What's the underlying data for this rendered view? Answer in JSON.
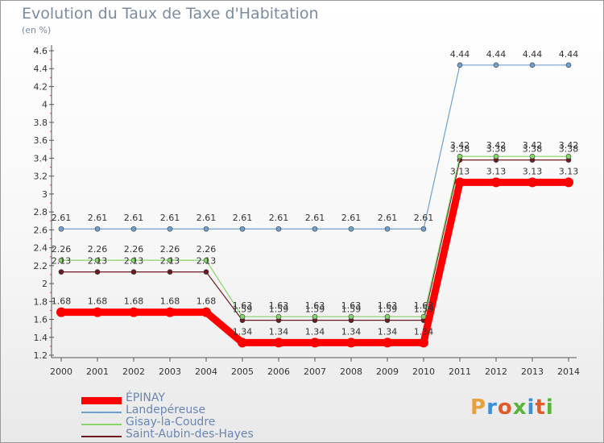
{
  "title": "Evolution du Taux de Taxe d'Habitation",
  "subtitle": "(en %)",
  "logo_text": "Proxiti",
  "logo_colors": [
    "#e8a13a",
    "#3b8fd6",
    "#e25c2b",
    "#58b43c",
    "#3b8fd6",
    "#e25c2b",
    "#58b43c"
  ],
  "chart_data": {
    "type": "line",
    "title": "Evolution du Taux de Taxe d'Habitation",
    "ylabel": "(en %)",
    "xlabel": "",
    "x": [
      "2000",
      "2001",
      "2002",
      "2003",
      "2004",
      "2005",
      "2006",
      "2007",
      "2008",
      "2009",
      "2010",
      "2011",
      "2012",
      "2013",
      "2014"
    ],
    "ylim": [
      1.2,
      4.6
    ],
    "y_ticks": [
      "1.2",
      "1.4",
      "1.6",
      "1.8",
      "2",
      "2.2",
      "2.4",
      "2.6",
      "2.8",
      "3",
      "3.2",
      "3.4",
      "3.6",
      "3.8",
      "4",
      "4.2",
      "4.4",
      "4.6"
    ],
    "grid": false,
    "legend_position": "bottom-left",
    "series": [
      {
        "name": "Saint-Aubin-des-Hayes",
        "color": "#6b1a1f",
        "width": 1.2,
        "marker": 3,
        "values": [
          2.13,
          2.13,
          2.13,
          2.13,
          2.13,
          1.59,
          1.59,
          1.59,
          1.59,
          1.59,
          1.59,
          3.38,
          3.38,
          3.38,
          3.38
        ],
        "labels": [
          "2.13",
          "2.13",
          "2.13",
          "2.13",
          "2.13",
          "1.59",
          "1.59",
          "1.59",
          "1.59",
          "1.59",
          "1.59",
          "3.38",
          "3.38",
          "3.38",
          "3.38"
        ]
      },
      {
        "name": "Gisay-la-Coudre",
        "color": "#86d46a",
        "width": 1.2,
        "marker": 3,
        "values": [
          2.26,
          2.26,
          2.26,
          2.26,
          2.26,
          1.63,
          1.63,
          1.63,
          1.63,
          1.63,
          1.63,
          3.42,
          3.42,
          3.42,
          3.42
        ],
        "labels": [
          "2.26",
          "2.26",
          "2.26",
          "2.26",
          "2.26",
          "1.63",
          "1.63",
          "1.63",
          "1.63",
          "1.63",
          "1.63",
          "3.42",
          "3.42",
          "3.42",
          "3.42"
        ]
      },
      {
        "name": "Landepéreuse",
        "color": "#6fa0d0",
        "width": 1.2,
        "marker": 3,
        "values": [
          2.61,
          2.61,
          2.61,
          2.61,
          2.61,
          2.61,
          2.61,
          2.61,
          2.61,
          2.61,
          2.61,
          4.44,
          4.44,
          4.44,
          4.44
        ],
        "labels": [
          "2.61",
          "2.61",
          "2.61",
          "2.61",
          "2.61",
          "2.61",
          "2.61",
          "2.61",
          "2.61",
          "2.61",
          "2.61",
          "4.44",
          "4.44",
          "4.44",
          "4.44"
        ]
      },
      {
        "name": "ÉPINAY",
        "color": "#ff0000",
        "width": 9,
        "marker": 6,
        "values": [
          1.68,
          1.68,
          1.68,
          1.68,
          1.68,
          1.34,
          1.34,
          1.34,
          1.34,
          1.34,
          1.34,
          3.13,
          3.13,
          3.13,
          3.13
        ],
        "labels": [
          "1.68",
          "1.68",
          "1.68",
          "1.68",
          "1.68",
          "1.34",
          "1.34",
          "1.34",
          "1.34",
          "1.34",
          "1.34",
          "3.13",
          "3.13",
          "3.13",
          "3.13"
        ]
      }
    ]
  },
  "legend": [
    {
      "label": "ÉPINAY",
      "color": "#ff0000",
      "thickness": 9
    },
    {
      "label": "Landepéreuse",
      "color": "#6fa0d0",
      "thickness": 2
    },
    {
      "label": "Gisay-la-Coudre",
      "color": "#86d46a",
      "thickness": 2
    },
    {
      "label": "Saint-Aubin-des-Hayes",
      "color": "#6b1a1f",
      "thickness": 2
    }
  ]
}
